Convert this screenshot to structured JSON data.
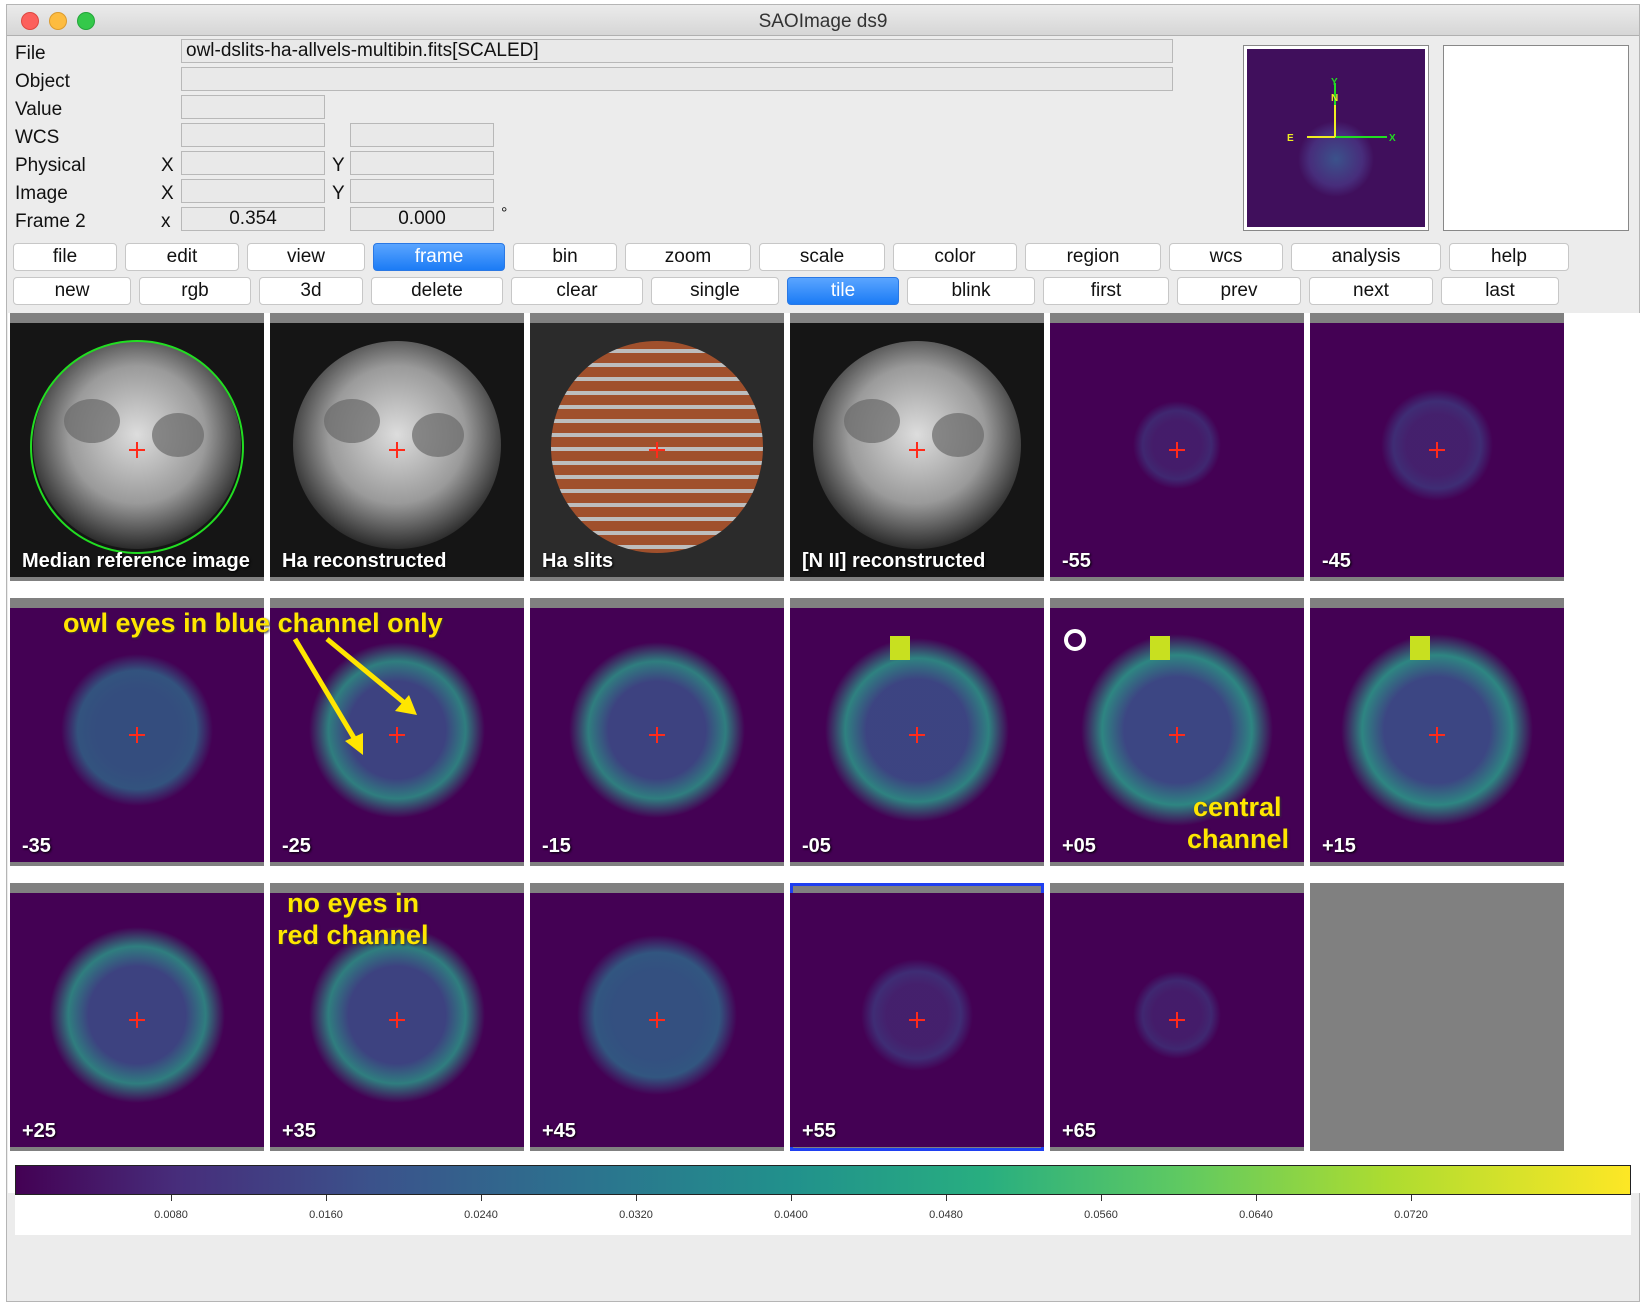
{
  "window": {
    "title": "SAOImage ds9"
  },
  "info": {
    "file_label": "File",
    "file_value": "owl-dslits-ha-allvels-multibin.fits[SCALED]",
    "object_label": "Object",
    "value_label": "Value",
    "wcs_label": "WCS",
    "physical_label": "Physical",
    "image_label": "Image",
    "frame_label": "Frame 2",
    "x_upper": "X",
    "y_upper": "Y",
    "x_lower": "x",
    "frame_x_value": "0.354",
    "frame_y_value": "0.000",
    "degree_symbol": "°"
  },
  "panner": {
    "n": "N",
    "e": "E",
    "x": "X",
    "y": "Y"
  },
  "main_menu": [
    "file",
    "edit",
    "view",
    "frame",
    "bin",
    "zoom",
    "scale",
    "color",
    "region",
    "wcs",
    "analysis",
    "help"
  ],
  "main_menu_active": "frame",
  "sub_menu": [
    "new",
    "rgb",
    "3d",
    "delete",
    "clear",
    "single",
    "tile",
    "blink",
    "first",
    "prev",
    "next",
    "last"
  ],
  "sub_menu_active": "tile",
  "frames": [
    {
      "label": "Median reference image",
      "style": "gray"
    },
    {
      "label": "Ha reconstructed",
      "style": "gray"
    },
    {
      "label": "Ha slits",
      "style": "slits"
    },
    {
      "label": "[N II] reconstructed",
      "style": "gray"
    },
    {
      "label": "-55",
      "style": "viridis",
      "level": 0.05
    },
    {
      "label": "-45",
      "style": "viridis",
      "level": 0.2
    },
    {
      "label": "-35",
      "style": "viridis",
      "level": 0.45
    },
    {
      "label": "-25",
      "style": "viridis",
      "level": 0.6
    },
    {
      "label": "-15",
      "style": "viridis",
      "level": 0.6
    },
    {
      "label": "-05",
      "style": "viridis",
      "level": 0.65
    },
    {
      "label": "+05",
      "style": "viridis",
      "level": 0.7
    },
    {
      "label": "+15",
      "style": "viridis",
      "level": 0.7
    },
    {
      "label": "+25",
      "style": "viridis",
      "level": 0.6
    },
    {
      "label": "+35",
      "style": "viridis",
      "level": 0.6
    },
    {
      "label": "+45",
      "style": "viridis",
      "level": 0.5
    },
    {
      "label": "+55",
      "style": "viridis",
      "level": 0.2
    },
    {
      "label": "+65",
      "style": "viridis",
      "level": 0.05
    }
  ],
  "annotations": {
    "owl_eyes": "owl eyes in blue channel only",
    "central_1": "central",
    "central_2": "channel",
    "no_eyes_1": "no eyes in",
    "no_eyes_2": "red channel"
  },
  "colorbar": {
    "ticks": [
      "0.0080",
      "0.0160",
      "0.0240",
      "0.0320",
      "0.0400",
      "0.0480",
      "0.0560",
      "0.0640",
      "0.0720"
    ],
    "colors": [
      "#440154",
      "#3b528b",
      "#21918c",
      "#5ec962",
      "#fde725"
    ]
  }
}
